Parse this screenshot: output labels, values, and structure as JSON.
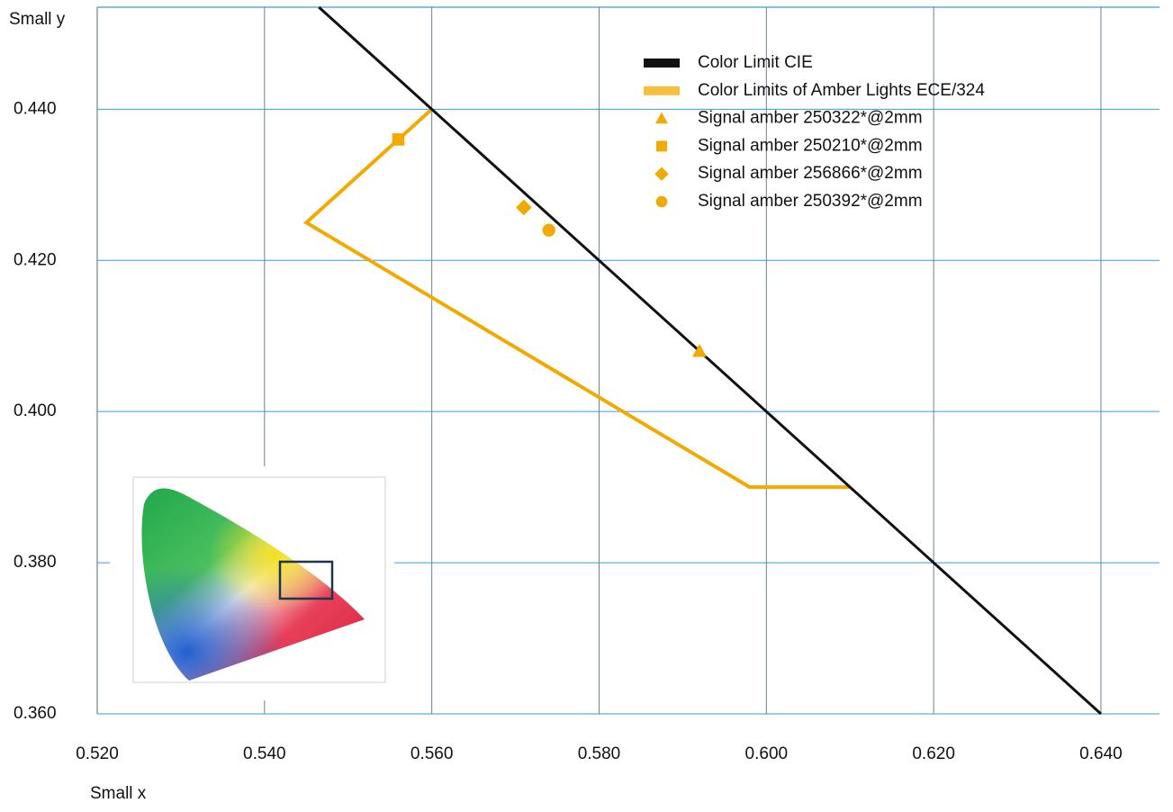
{
  "chart_data": {
    "type": "scatter",
    "x_label": "Small x",
    "y_label": "Small y",
    "xlim": [
      0.52,
      0.647
    ],
    "ylim": [
      0.36,
      0.4535
    ],
    "xticks": [
      {
        "value": 0.52,
        "label": "0.520"
      },
      {
        "value": 0.54,
        "label": "0.540"
      },
      {
        "value": 0.56,
        "label": "0.560"
      },
      {
        "value": 0.58,
        "label": "0.580"
      },
      {
        "value": 0.6,
        "label": "0.600"
      },
      {
        "value": 0.62,
        "label": "0.620"
      },
      {
        "value": 0.64,
        "label": "0.640"
      }
    ],
    "yticks": [
      {
        "value": 0.36,
        "label": "0.360"
      },
      {
        "value": 0.38,
        "label": "0.380"
      },
      {
        "value": 0.4,
        "label": "0.400"
      },
      {
        "value": 0.42,
        "label": "0.420"
      },
      {
        "value": 0.44,
        "label": "0.440"
      }
    ],
    "grid": true,
    "legend": "upper right",
    "series": [
      {
        "name": "Color Limit CIE",
        "type": "line",
        "color": "#111111",
        "x": [
          0.5465,
          0.64
        ],
        "y": [
          0.4535,
          0.36
        ]
      },
      {
        "name": "Color Limits of Amber Lights ECE/324",
        "type": "line",
        "color": "#f2a900",
        "x": [
          0.61,
          0.598,
          0.545,
          0.56
        ],
        "y": [
          0.39,
          0.39,
          0.425,
          0.44
        ]
      },
      {
        "name": "Signal amber 250322*@2mm",
        "type": "scatter",
        "marker": "triangle",
        "color": "#f2a900",
        "x": [
          0.592
        ],
        "y": [
          0.408
        ]
      },
      {
        "name": "Signal amber 250210*@2mm",
        "type": "scatter",
        "marker": "square",
        "color": "#f2a900",
        "x": [
          0.556
        ],
        "y": [
          0.436
        ]
      },
      {
        "name": "Signal amber 256866*@2mm",
        "type": "scatter",
        "marker": "diamond",
        "color": "#f2a900",
        "x": [
          0.571
        ],
        "y": [
          0.427
        ]
      },
      {
        "name": "Signal amber 250392*@2mm",
        "type": "scatter",
        "marker": "circle",
        "color": "#f2a900",
        "x": [
          0.574
        ],
        "y": [
          0.424
        ]
      }
    ]
  }
}
